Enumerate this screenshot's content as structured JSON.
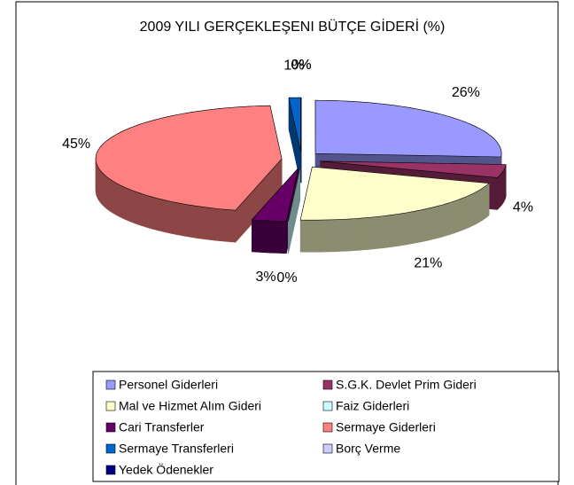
{
  "chart_data": {
    "type": "pie3d",
    "title": "2009 YILI GERÇEKLEŞENI BÜTÇE GİDERİ (%)",
    "categories": [
      "Personel Giderleri",
      "S.G.K. Devlet Prim Gideri",
      "Mal ve Hizmet Alım Gideri",
      "Faiz Giderleri",
      "Cari Transferler",
      "Sermaye Giderleri",
      "Sermaye Transferleri",
      "Borç Verme",
      "Yedek Ödenekler"
    ],
    "values": [
      26,
      4,
      21,
      0,
      3,
      45,
      1,
      0,
      0
    ],
    "value_labels": [
      "26%",
      "4%",
      "21%",
      "0%",
      "3%",
      "45%",
      "1%",
      "0%",
      "0%"
    ],
    "colors": [
      "#9999FF",
      "#993366",
      "#FFFFCC",
      "#CCFFFF",
      "#660066",
      "#FF8080",
      "#0066CC",
      "#CCCCFF",
      "#000080"
    ],
    "legend": "bottom"
  }
}
